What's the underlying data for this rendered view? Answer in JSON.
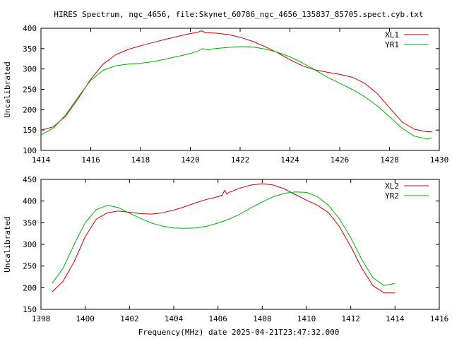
{
  "colors": {
    "red": "#cc0000",
    "green": "#00b000"
  },
  "chart_data": [
    {
      "type": "line",
      "title": "HIRES Spectrum, ngc_4656, file:Skynet_60786_ngc_4656_135837_85705.spect.cyb.txt",
      "xlabel": "",
      "ylabel": "Uncalibrated",
      "xlim": [
        1414,
        1430
      ],
      "ylim": [
        100,
        400
      ],
      "xticks": [
        "1414",
        "1416",
        "1418",
        "1420",
        "1422",
        "1424",
        "1426",
        "1428",
        "1430"
      ],
      "yticks": [
        "100",
        "150",
        "200",
        "250",
        "300",
        "350",
        "400"
      ],
      "legend_position": "top-right",
      "series": [
        {
          "name": "XL1",
          "color": "#cc0000",
          "x": [
            1414.0,
            1414.5,
            1415.0,
            1415.5,
            1416.0,
            1416.5,
            1417.0,
            1417.5,
            1418.0,
            1418.5,
            1419.0,
            1419.5,
            1420.0,
            1420.3,
            1420.45,
            1420.6,
            1421.0,
            1421.5,
            1422.0,
            1422.5,
            1423.0,
            1423.5,
            1424.0,
            1424.5,
            1425.0,
            1425.5,
            1426.0,
            1426.5,
            1427.0,
            1427.5,
            1428.0,
            1428.5,
            1429.0,
            1429.5,
            1429.7
          ],
          "y": [
            150,
            158,
            185,
            228,
            275,
            312,
            335,
            348,
            357,
            365,
            373,
            380,
            387,
            390,
            394,
            389,
            388,
            385,
            378,
            368,
            355,
            340,
            323,
            308,
            298,
            292,
            287,
            280,
            265,
            240,
            205,
            170,
            152,
            146,
            146
          ]
        },
        {
          "name": "YR1",
          "color": "#00b000",
          "x": [
            1414.0,
            1414.5,
            1415.0,
            1415.5,
            1416.0,
            1416.5,
            1417.0,
            1417.5,
            1418.0,
            1418.5,
            1419.0,
            1419.5,
            1420.0,
            1420.3,
            1420.5,
            1420.7,
            1421.0,
            1421.5,
            1422.0,
            1422.5,
            1423.0,
            1423.5,
            1424.0,
            1424.5,
            1425.0,
            1425.5,
            1426.0,
            1426.5,
            1427.0,
            1427.5,
            1428.0,
            1428.5,
            1429.0,
            1429.5,
            1429.7
          ],
          "y": [
            138,
            155,
            188,
            232,
            272,
            297,
            308,
            312,
            314,
            318,
            324,
            331,
            338,
            344,
            350,
            347,
            350,
            353,
            355,
            354,
            349,
            341,
            330,
            315,
            298,
            280,
            265,
            250,
            232,
            210,
            183,
            155,
            135,
            128,
            131
          ]
        }
      ]
    },
    {
      "type": "line",
      "title": "",
      "xlabel": "Frequency(MHz) date 2025-04-21T23:47:32.000",
      "ylabel": "Uncalibrated",
      "xlim": [
        1398,
        1416
      ],
      "ylim": [
        150,
        450
      ],
      "xticks": [
        "1398",
        "1400",
        "1402",
        "1404",
        "1406",
        "1408",
        "1410",
        "1412",
        "1414",
        "1416"
      ],
      "yticks": [
        "150",
        "200",
        "250",
        "300",
        "350",
        "400",
        "450"
      ],
      "legend_position": "top-right",
      "series": [
        {
          "name": "XL2",
          "color": "#cc0000",
          "x": [
            1398.5,
            1399.0,
            1399.5,
            1400.0,
            1400.5,
            1401.0,
            1401.5,
            1402.0,
            1402.5,
            1403.0,
            1403.5,
            1404.0,
            1404.5,
            1405.0,
            1405.5,
            1406.0,
            1406.2,
            1406.3,
            1406.4,
            1406.5,
            1407.0,
            1407.5,
            1408.0,
            1408.5,
            1409.0,
            1409.5,
            1410.0,
            1410.5,
            1411.0,
            1411.5,
            1412.0,
            1412.5,
            1413.0,
            1413.5,
            1414.0
          ],
          "y": [
            190,
            215,
            260,
            318,
            358,
            373,
            377,
            374,
            371,
            370,
            373,
            379,
            387,
            396,
            404,
            410,
            414,
            425,
            416,
            420,
            430,
            437,
            440,
            437,
            428,
            415,
            402,
            390,
            373,
            340,
            295,
            245,
            205,
            188,
            188
          ]
        },
        {
          "name": "YR2",
          "color": "#00b000",
          "x": [
            1398.5,
            1399.0,
            1399.5,
            1400.0,
            1400.5,
            1401.0,
            1401.5,
            1402.0,
            1402.5,
            1403.0,
            1403.5,
            1404.0,
            1404.5,
            1405.0,
            1405.5,
            1406.0,
            1406.5,
            1407.0,
            1407.5,
            1408.0,
            1408.5,
            1409.0,
            1409.5,
            1410.0,
            1410.5,
            1411.0,
            1411.5,
            1412.0,
            1412.5,
            1413.0,
            1413.5,
            1414.0
          ],
          "y": [
            210,
            245,
            300,
            350,
            380,
            390,
            385,
            372,
            360,
            349,
            342,
            338,
            337,
            338,
            342,
            349,
            358,
            370,
            385,
            398,
            410,
            418,
            421,
            420,
            410,
            390,
            358,
            315,
            265,
            223,
            205,
            210
          ]
        }
      ]
    }
  ]
}
